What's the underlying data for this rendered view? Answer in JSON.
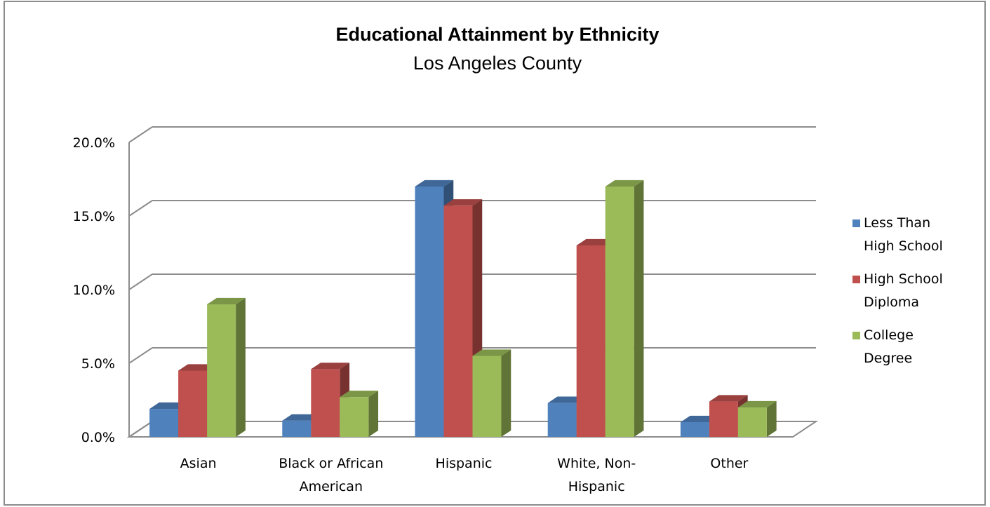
{
  "chart_data": {
    "type": "bar",
    "title": "Educational Attainment by Ethnicity",
    "subtitle": "Los Angeles County",
    "xlabel": "",
    "ylabel": "",
    "categories": [
      [
        "Asian"
      ],
      [
        "Black or African",
        "American"
      ],
      [
        "Hispanic"
      ],
      [
        "White, Non-",
        "Hispanic"
      ],
      [
        "Other"
      ]
    ],
    "series": [
      {
        "name": [
          "Less Than",
          "High School"
        ],
        "color": "#4f81bd",
        "values": [
          1.9,
          1.1,
          17.0,
          2.3,
          1.0
        ]
      },
      {
        "name": [
          "High School",
          "Diploma"
        ],
        "color": "#c0504d",
        "values": [
          4.5,
          4.6,
          15.7,
          13.0,
          2.4
        ]
      },
      {
        "name": [
          "College",
          "Degree"
        ],
        "color": "#9bbb59",
        "values": [
          9.0,
          2.7,
          5.5,
          17.0,
          2.0
        ]
      }
    ],
    "ylim": [
      0,
      20
    ],
    "yticks": [
      "0.0%",
      "5.0%",
      "10.0%",
      "15.0%",
      "20.0%"
    ],
    "grid": true,
    "legend": "right",
    "three_d": true
  }
}
